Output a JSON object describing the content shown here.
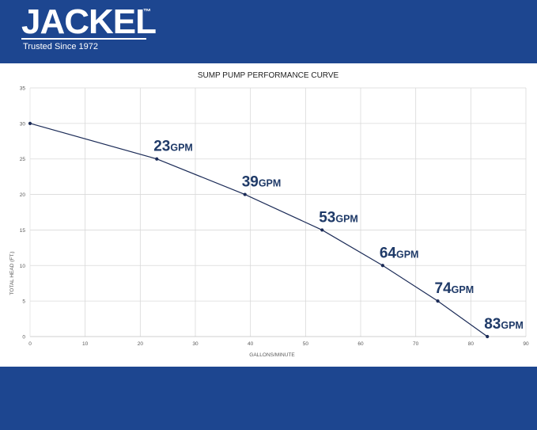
{
  "brand": {
    "name": "JACKEL",
    "trademark": "™",
    "tagline": "Trusted Since 1972"
  },
  "colors": {
    "brand_blue": "#1d4690",
    "line": "#1b2b57",
    "label": "#1f3a68",
    "grid": "#d9d9d9",
    "axis_text": "#595959"
  },
  "chart_data": {
    "type": "line",
    "title": "SUMP PUMP PERFORMANCE CURVE",
    "xlabel": "GALLONS/MINUTE",
    "ylabel": "TOTAL HEAD (FT.)",
    "xlim": [
      0,
      90
    ],
    "ylim": [
      0,
      35
    ],
    "xticks": [
      0,
      10,
      20,
      30,
      40,
      50,
      60,
      70,
      80,
      90
    ],
    "yticks": [
      0,
      5,
      10,
      15,
      20,
      25,
      30,
      35
    ],
    "grid": true,
    "series": [
      {
        "points": [
          {
            "x": 0,
            "y": 30
          },
          {
            "x": 23,
            "y": 25
          },
          {
            "x": 39,
            "y": 20
          },
          {
            "x": 53,
            "y": 15
          },
          {
            "x": 64,
            "y": 10
          },
          {
            "x": 74,
            "y": 5
          },
          {
            "x": 83,
            "y": 0
          }
        ]
      }
    ],
    "annotations": [
      {
        "value": "23",
        "unit": "GPM",
        "x": 23,
        "y": 25
      },
      {
        "value": "39",
        "unit": "GPM",
        "x": 39,
        "y": 20
      },
      {
        "value": "53",
        "unit": "GPM",
        "x": 53,
        "y": 15
      },
      {
        "value": "64",
        "unit": "GPM",
        "x": 64,
        "y": 10
      },
      {
        "value": "74",
        "unit": "GPM",
        "x": 74,
        "y": 5
      },
      {
        "value": "83",
        "unit": "GPM",
        "x": 83,
        "y": 0
      }
    ]
  }
}
